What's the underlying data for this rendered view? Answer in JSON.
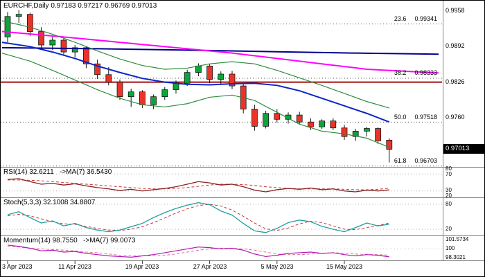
{
  "chart_data": {
    "type": "candlestick",
    "symbol": "EURCHF",
    "timeframe": "Daily",
    "main": {
      "header": "EURCHF,Daily 0.97183 0.97217 0.96769 0.97013",
      "ohlc": {
        "open": "0.97183",
        "high": "0.97217",
        "low": "0.96769",
        "close": "0.97013"
      },
      "price_axis": [
        "0.9958",
        "0.9892",
        "0.9826",
        "0.9760"
      ],
      "current_price": "0.97013",
      "resistance_line_price": 0.9826,
      "fib_levels": [
        {
          "pct": "23.6",
          "price": 0.99341,
          "price_text": "0.99341"
        },
        {
          "pct": "38.2",
          "price": 0.98333,
          "price_text": "0.98333"
        },
        {
          "pct": "50.0",
          "price": 0.97518,
          "price_text": "0.97518"
        },
        {
          "pct": "61.8",
          "price": 0.96703,
          "price_text": "0.96703"
        }
      ],
      "colors": {
        "up": "#0da53a",
        "down": "#e8342a",
        "wick": "#111111",
        "resistance": "#a01010"
      },
      "overlays": [
        {
          "name": "ma-long-blue",
          "color": "#00008b",
          "width": 2,
          "points": [
            [
              -0.5,
              0.989
            ],
            [
              8,
              0.9888
            ],
            [
              16,
              0.98855
            ],
            [
              24,
              0.98825
            ],
            [
              31,
              0.988
            ],
            [
              38.4,
              0.9878
            ]
          ]
        },
        {
          "name": "ma-magenta",
          "color": "#ff00ff",
          "width": 2,
          "points": [
            [
              -0.5,
              0.992
            ],
            [
              5,
              0.991
            ],
            [
              10,
              0.99
            ],
            [
              15,
              0.989
            ],
            [
              20,
              0.988
            ],
            [
              24,
              0.987
            ],
            [
              28,
              0.986
            ],
            [
              32,
              0.985
            ],
            [
              38.4,
              0.9843
            ]
          ]
        },
        {
          "name": "ma-blue",
          "color": "#0b24c9",
          "width": 2,
          "points": [
            [
              -0.5,
              0.99
            ],
            [
              2,
              0.9892
            ],
            [
              4,
              0.9882
            ],
            [
              6,
              0.987
            ],
            [
              8,
              0.9856
            ],
            [
              10,
              0.9844
            ],
            [
              12,
              0.9833
            ],
            [
              14,
              0.9826
            ],
            [
              16,
              0.9822
            ],
            [
              18,
              0.9821
            ],
            [
              20,
              0.9823
            ],
            [
              22,
              0.9824
            ],
            [
              24,
              0.982
            ],
            [
              26,
              0.981
            ],
            [
              28,
              0.9796
            ],
            [
              30,
              0.9782
            ],
            [
              32,
              0.9768
            ],
            [
              34,
              0.9752
            ]
          ]
        },
        {
          "name": "band-upper",
          "color": "#2e8b3d",
          "width": 1.2,
          "points": [
            [
              -0.5,
              0.994
            ],
            [
              2,
              0.9928
            ],
            [
              4,
              0.9915
            ],
            [
              6,
              0.99
            ],
            [
              8,
              0.9884
            ],
            [
              10,
              0.9869
            ],
            [
              12,
              0.9857
            ],
            [
              14,
              0.985
            ],
            [
              16,
              0.9852
            ],
            [
              18,
              0.986
            ],
            [
              20,
              0.9864
            ],
            [
              22,
              0.986
            ],
            [
              24,
              0.9848
            ],
            [
              26,
              0.9834
            ],
            [
              28,
              0.982
            ],
            [
              30,
              0.9805
            ],
            [
              32,
              0.979
            ],
            [
              34,
              0.9778
            ]
          ]
        },
        {
          "name": "band-lower",
          "color": "#2e8b3d",
          "width": 1.2,
          "points": [
            [
              -0.5,
              0.988
            ],
            [
              2,
              0.9865
            ],
            [
              4,
              0.9848
            ],
            [
              6,
              0.983
            ],
            [
              8,
              0.9812
            ],
            [
              10,
              0.9796
            ],
            [
              12,
              0.9784
            ],
            [
              14,
              0.978
            ],
            [
              16,
              0.9786
            ],
            [
              18,
              0.9798
            ],
            [
              20,
              0.9802
            ],
            [
              22,
              0.9792
            ],
            [
              24,
              0.977
            ],
            [
              26,
              0.9748
            ],
            [
              28,
              0.9735
            ],
            [
              30,
              0.973
            ],
            [
              32,
              0.9722
            ],
            [
              34,
              0.9705
            ]
          ]
        }
      ],
      "candles": [
        [
          0.991,
          0.9956,
          0.99,
          0.9948
        ],
        [
          0.9948,
          0.996,
          0.9936,
          0.9952
        ],
        [
          0.9952,
          0.9955,
          0.9912,
          0.992
        ],
        [
          0.992,
          0.9928,
          0.9888,
          0.9895
        ],
        [
          0.9895,
          0.991,
          0.9886,
          0.9904
        ],
        [
          0.9904,
          0.9907,
          0.9876,
          0.9882
        ],
        [
          0.9882,
          0.9895,
          0.9872,
          0.989
        ],
        [
          0.989,
          0.9893,
          0.9852,
          0.986
        ],
        [
          0.986,
          0.9868,
          0.9832,
          0.984
        ],
        [
          0.984,
          0.9854,
          0.982,
          0.9826
        ],
        [
          0.9826,
          0.9831,
          0.9793,
          0.9799
        ],
        [
          0.9799,
          0.9814,
          0.978,
          0.9808
        ],
        [
          0.9808,
          0.9811,
          0.9778,
          0.9784
        ],
        [
          0.9784,
          0.9803,
          0.9776,
          0.9799
        ],
        [
          0.9799,
          0.9817,
          0.9793,
          0.9812
        ],
        [
          0.9812,
          0.9829,
          0.9805,
          0.9824
        ],
        [
          0.9824,
          0.9849,
          0.9819,
          0.9844
        ],
        [
          0.9844,
          0.9861,
          0.9837,
          0.9856
        ],
        [
          0.9856,
          0.9859,
          0.9824,
          0.9831
        ],
        [
          0.9831,
          0.9846,
          0.9822,
          0.9841
        ],
        [
          0.9841,
          0.9847,
          0.9813,
          0.9819
        ],
        [
          0.9819,
          0.9824,
          0.9768,
          0.9776
        ],
        [
          0.9776,
          0.9784,
          0.9736,
          0.9744
        ],
        [
          0.9744,
          0.9773,
          0.974,
          0.9768
        ],
        [
          0.9768,
          0.9776,
          0.9751,
          0.9757
        ],
        [
          0.9757,
          0.977,
          0.9749,
          0.9765
        ],
        [
          0.9765,
          0.9771,
          0.9747,
          0.9752
        ],
        [
          0.9752,
          0.9759,
          0.9737,
          0.9743
        ],
        [
          0.9743,
          0.9757,
          0.9739,
          0.9754
        ],
        [
          0.9754,
          0.9759,
          0.9737,
          0.9741
        ],
        [
          0.9741,
          0.9747,
          0.9719,
          0.9725
        ],
        [
          0.9725,
          0.9739,
          0.9717,
          0.9735
        ],
        [
          0.9735,
          0.9743,
          0.9725,
          0.974
        ],
        [
          0.974,
          0.9742,
          0.9711,
          0.9717
        ],
        [
          0.97183,
          0.97217,
          0.96769,
          0.97013
        ]
      ]
    },
    "x_axis": {
      "labels": [
        {
          "text": "3 Apr 2023",
          "bar": 0
        },
        {
          "text": "11 Apr 2023",
          "bar": 6
        },
        {
          "text": "19 Apr 2023",
          "bar": 12
        },
        {
          "text": "27 Apr 2023",
          "bar": 18
        },
        {
          "text": "5 May 2023",
          "bar": 24
        },
        {
          "text": "15 May 2023",
          "bar": 30
        }
      ]
    },
    "indicators": {
      "rsi": {
        "header": "RSI(14) 32.6211   ->MA(7) 36.5430",
        "value": 32.6211,
        "ma": 36.543,
        "axis": [
          "80",
          "70",
          "30",
          "20"
        ],
        "levels": [
          70,
          30
        ],
        "color": "#882222",
        "ma_color": "#cc3333",
        "values": [
          57,
          59,
          52,
          46,
          48,
          44,
          47,
          42,
          38,
          35,
          31,
          34,
          30,
          33,
          36,
          40,
          46,
          52,
          49,
          44,
          46,
          40,
          32,
          28,
          33,
          36,
          34,
          37,
          33,
          35,
          30,
          28,
          32,
          30,
          32.62
        ],
        "ma_values": [
          56,
          56,
          55,
          54,
          52,
          50,
          48,
          46,
          44,
          42,
          40,
          38,
          36,
          35,
          35,
          36,
          38,
          41,
          44,
          46,
          46,
          45,
          43,
          40,
          38,
          36,
          35,
          35,
          35,
          35,
          34,
          33,
          33,
          34,
          36.54
        ]
      },
      "stoch": {
        "header": "Stoch(5,3,3) 32.1008 34.8807",
        "k": 32.1008,
        "d": 34.8807,
        "axis": [
          "80",
          "20"
        ],
        "levels": [
          80,
          20
        ],
        "k_color": "#1d9e9e",
        "d_color": "#cc3333",
        "k_values": [
          55,
          62,
          48,
          35,
          40,
          28,
          34,
          24,
          18,
          14,
          18,
          26,
          34,
          48,
          60,
          70,
          78,
          84,
          79,
          64,
          54,
          34,
          16,
          12,
          22,
          36,
          42,
          38,
          27,
          20,
          14,
          24,
          35,
          28,
          32.1
        ],
        "d_values": [
          52,
          56,
          52,
          45,
          38,
          33,
          32,
          27,
          22,
          18,
          17,
          20,
          26,
          36,
          47,
          59,
          69,
          77,
          80,
          76,
          66,
          51,
          35,
          21,
          17,
          23,
          33,
          39,
          36,
          28,
          20,
          19,
          24,
          29,
          34.88
        ]
      },
      "momentum": {
        "header": "Momentum(14) 98.7550   ->MA(7) 99.0073",
        "value": 98.755,
        "ma": 99.0073,
        "axis": [
          "101.5734",
          "100",
          "98.3021"
        ],
        "levels": [
          100
        ],
        "color": "#b517b5",
        "ma_color": "#e07090",
        "values": [
          100.6,
          100.4,
          100.1,
          99.7,
          99.8,
          99.5,
          99.6,
          99.3,
          99.1,
          98.9,
          98.8,
          98.7,
          98.9,
          99.1,
          99.4,
          99.7,
          100.0,
          100.3,
          100.2,
          100.0,
          100.1,
          99.8,
          99.2,
          98.8,
          99.0,
          99.3,
          99.4,
          99.5,
          99.3,
          99.4,
          99.1,
          98.9,
          99.1,
          99.0,
          98.755
        ],
        "ma_values": [
          100.4,
          100.3,
          100.1,
          100.0,
          99.9,
          99.8,
          99.7,
          99.5,
          99.4,
          99.2,
          99.0,
          98.9,
          98.9,
          98.9,
          99.0,
          99.2,
          99.5,
          99.8,
          100.0,
          100.1,
          100.1,
          100.0,
          99.8,
          99.5,
          99.2,
          99.1,
          99.1,
          99.2,
          99.3,
          99.4,
          99.3,
          99.2,
          99.1,
          99.1,
          99.007
        ]
      }
    }
  }
}
